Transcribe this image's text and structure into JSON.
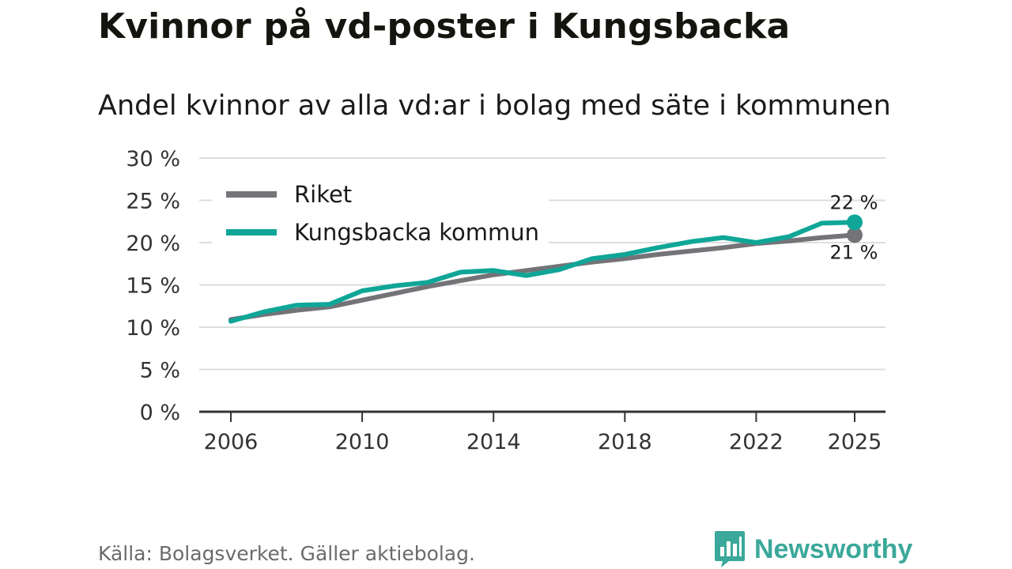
{
  "title": "Kvinnor på vd-poster i Kungsbacka",
  "subtitle": "Andel kvinnor av alla vd:ar i bolag med säte i kommunen",
  "source": "Källa: Bolagsverket. Gäller aktiebolag.",
  "brand": "Newsworthy",
  "colors": {
    "riket": "#747378",
    "kommun": "#0fa698",
    "grid": "#dddddd",
    "axis": "#333333",
    "brand": "#3aa89a"
  },
  "icons": {
    "brand_logo": "bar-chart-speech-bubble-icon"
  },
  "chart_data": {
    "type": "line",
    "title": "Kvinnor på vd-poster i Kungsbacka",
    "subtitle": "Andel kvinnor av alla vd:ar i bolag med säte i kommunen",
    "xlabel": "",
    "ylabel": "",
    "x": [
      2006,
      2007,
      2008,
      2009,
      2010,
      2011,
      2012,
      2013,
      2014,
      2015,
      2016,
      2017,
      2018,
      2019,
      2020,
      2021,
      2022,
      2023,
      2024,
      2025
    ],
    "xlim": [
      2006,
      2025
    ],
    "ylim": [
      0,
      30
    ],
    "x_ticks": [
      2006,
      2010,
      2014,
      2018,
      2022,
      2025
    ],
    "x_tick_labels": [
      "2006",
      "2010",
      "2014",
      "2018",
      "2022",
      "2025"
    ],
    "y_ticks": [
      0,
      5,
      10,
      15,
      20,
      25,
      30
    ],
    "y_tick_labels": [
      "0 %",
      "5 %",
      "10 %",
      "15 %",
      "20 %",
      "25 %",
      "30 %"
    ],
    "grid": true,
    "legend_position": "top-left",
    "series": [
      {
        "name": "Riket",
        "color": "#747378",
        "values": [
          10.9,
          11.5,
          12.0,
          12.4,
          13.2,
          14.0,
          14.8,
          15.5,
          16.2,
          16.7,
          17.2,
          17.7,
          18.1,
          18.6,
          19.0,
          19.4,
          19.9,
          20.2,
          20.6,
          20.9
        ],
        "end_label": "21 %"
      },
      {
        "name": "Kungsbacka kommun",
        "color": "#0fa698",
        "values": [
          10.7,
          11.8,
          12.6,
          12.7,
          14.3,
          14.9,
          15.3,
          16.5,
          16.7,
          16.1,
          16.8,
          18.1,
          18.6,
          19.4,
          20.1,
          20.6,
          20.0,
          20.7,
          22.3,
          22.4
        ],
        "end_label": "22 %"
      }
    ]
  }
}
